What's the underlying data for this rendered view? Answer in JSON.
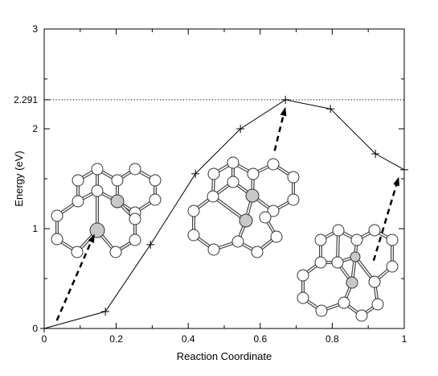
{
  "chart_data": {
    "type": "line",
    "xlabel": "Reaction Coordinate",
    "ylabel": "Energy (eV)",
    "xlim": [
      0,
      1
    ],
    "ylim": [
      0,
      3
    ],
    "xticks": [
      0,
      0.2,
      0.4,
      0.6,
      0.8,
      1
    ],
    "xtick_labels": [
      "0",
      "0.2",
      "0.4",
      "0.6",
      "0.8",
      "1"
    ],
    "yticks": [
      0,
      1,
      2,
      3
    ],
    "ytick_labels": [
      "0",
      "1",
      "2",
      "3"
    ],
    "reference_line": {
      "y": 2.291,
      "label": "2.291",
      "style": "dotted"
    },
    "series": [
      {
        "marker": "plus",
        "color": "#000000",
        "x": [
          0,
          0.17,
          0.295,
          0.42,
          0.545,
          0.67,
          0.795,
          0.92,
          1.0
        ],
        "y": [
          0,
          0.17,
          0.84,
          1.55,
          2.0,
          2.291,
          2.2,
          1.75,
          1.59
        ]
      }
    ],
    "grid": false,
    "inset_structures": [
      {
        "name": "initial-state-structure",
        "arrow_from": [
          0.035,
          0.08
        ],
        "arrow_to": [
          0.14,
          0.95
        ]
      },
      {
        "name": "transition-state-structure",
        "arrow_from": [
          0.64,
          1.78
        ],
        "arrow_to": [
          0.67,
          2.22
        ]
      },
      {
        "name": "final-state-structure",
        "arrow_from": [
          0.915,
          0.68
        ],
        "arrow_to": [
          0.985,
          1.52
        ]
      }
    ]
  }
}
